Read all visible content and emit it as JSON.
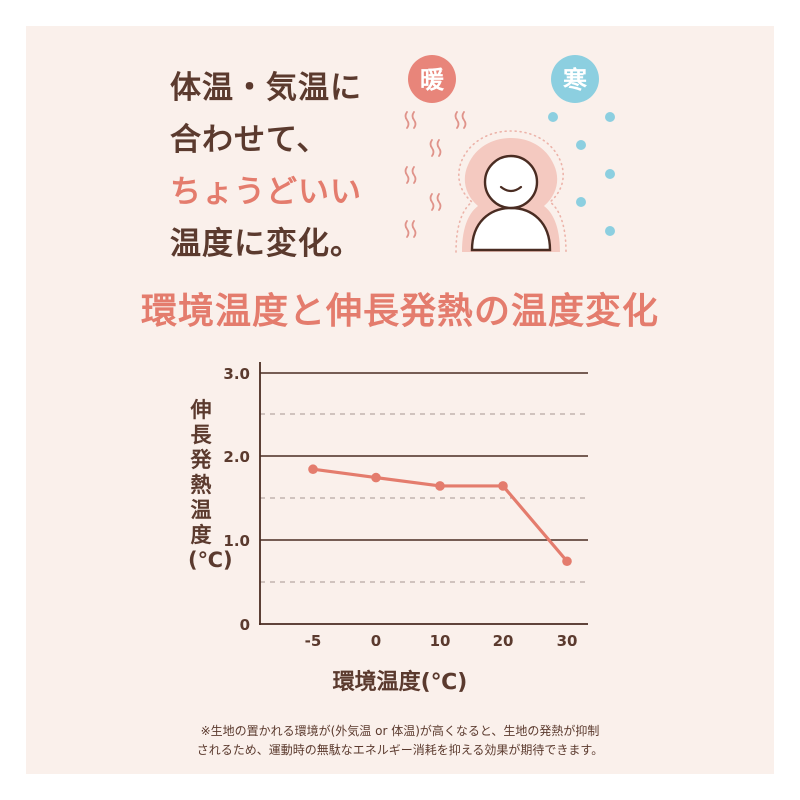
{
  "headline": {
    "line1": "体温・気温に",
    "line2": "合わせて、",
    "line3_accent": "ちょうどいい",
    "line4": "温度に変化。"
  },
  "illustration": {
    "warm_badge": "暖",
    "cold_badge": "寒",
    "warm_color": "#e8857a",
    "cold_color": "#8ccfe0"
  },
  "colors": {
    "background": "#faf0eb",
    "accent": "#e47c6d",
    "text": "#5b3a2e",
    "grid": "#5b3a2e"
  },
  "chart_data": {
    "type": "line",
    "title": "環境温度と伸長発熱の温度変化",
    "xlabel": "環境温度(℃)",
    "ylabel": "伸長発熱温度(℃)",
    "categories": [
      "-5",
      "0",
      "10",
      "20",
      "30"
    ],
    "series": [
      {
        "name": "伸長発熱温度",
        "values": [
          1.85,
          1.75,
          1.65,
          1.65,
          0.75
        ]
      }
    ],
    "ylim": [
      0,
      3.0
    ],
    "yticks": [
      "0",
      "1.0",
      "2.0",
      "3.0"
    ],
    "grid": {
      "major": [
        1.0,
        2.0,
        3.0
      ],
      "minor_dashed": [
        0.5,
        1.5,
        2.5
      ]
    },
    "legend": "none"
  },
  "footnote": {
    "line1": "※生地の置かれる環境が(外気温 or 体温)が高くなると、生地の発熱が抑制",
    "line2": "されるため、運動時の無駄なエネルギー消耗を抑える効果が期待できます。"
  }
}
